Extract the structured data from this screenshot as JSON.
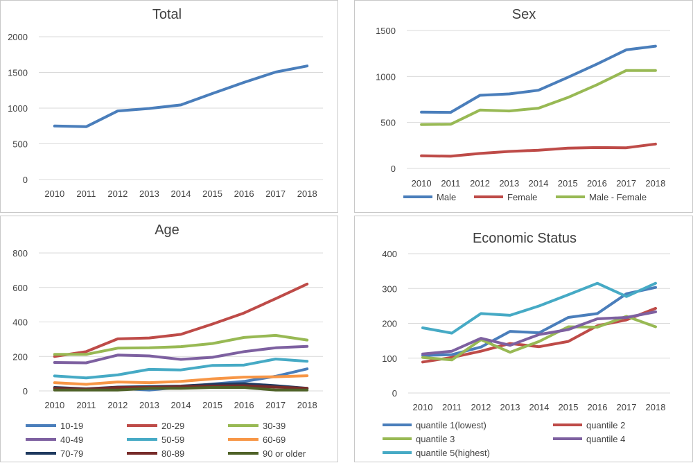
{
  "chart_data": [
    {
      "id": "total",
      "type": "line",
      "title": "Total",
      "categories": [
        "2010",
        "2011",
        "2012",
        "2013",
        "2014",
        "2015",
        "2016",
        "2017",
        "2018"
      ],
      "ylim": [
        0,
        2000
      ],
      "yticks": [
        0,
        500,
        1000,
        1500,
        2000
      ],
      "legend": "none",
      "series": [
        {
          "name": "Total",
          "color": "#4a7ebb",
          "values": [
            750,
            740,
            960,
            995,
            1045,
            1205,
            1360,
            1505,
            1590
          ]
        }
      ]
    },
    {
      "id": "sex",
      "type": "line",
      "title": "Sex",
      "categories": [
        "2010",
        "2011",
        "2012",
        "2013",
        "2014",
        "2015",
        "2016",
        "2017",
        "2018"
      ],
      "ylim": [
        0,
        1500
      ],
      "yticks": [
        0,
        500,
        1000,
        1500
      ],
      "legend": "bottom",
      "series": [
        {
          "name": "Male",
          "color": "#4a7ebb",
          "values": [
            612,
            610,
            795,
            810,
            850,
            990,
            1135,
            1290,
            1330
          ]
        },
        {
          "name": "Female",
          "color": "#be4b48",
          "values": [
            137,
            133,
            163,
            185,
            198,
            220,
            227,
            225,
            265
          ]
        },
        {
          "name": "Male - Female",
          "color": "#98b954",
          "values": [
            477,
            480,
            635,
            625,
            655,
            770,
            910,
            1065,
            1065
          ]
        }
      ]
    },
    {
      "id": "age",
      "type": "line",
      "title": "Age",
      "categories": [
        "2010",
        "2011",
        "2012",
        "2013",
        "2014",
        "2015",
        "2016",
        "2017",
        "2018"
      ],
      "ylim": [
        0,
        800
      ],
      "yticks": [
        0,
        200,
        400,
        600,
        800
      ],
      "legend": "bottom",
      "series": [
        {
          "name": "10-19",
          "color": "#4a7ebb",
          "values": [
            10,
            8,
            15,
            5,
            22,
            40,
            55,
            85,
            128
          ]
        },
        {
          "name": "20-29",
          "color": "#be4b48",
          "values": [
            200,
            228,
            302,
            307,
            328,
            388,
            452,
            535,
            620
          ]
        },
        {
          "name": "30-39",
          "color": "#98b954",
          "values": [
            212,
            212,
            248,
            250,
            257,
            275,
            310,
            322,
            295
          ]
        },
        {
          "name": "40-49",
          "color": "#7d60a0",
          "values": [
            165,
            163,
            208,
            203,
            183,
            195,
            228,
            250,
            258
          ]
        },
        {
          "name": "50-59",
          "color": "#46aac5",
          "values": [
            87,
            75,
            93,
            125,
            122,
            148,
            150,
            185,
            172
          ]
        },
        {
          "name": "60-69",
          "color": "#f79646",
          "values": [
            48,
            38,
            52,
            48,
            55,
            70,
            80,
            82,
            88
          ]
        },
        {
          "name": "70-79",
          "color": "#1f3a5f",
          "values": [
            20,
            12,
            22,
            25,
            28,
            38,
            42,
            30,
            15
          ]
        },
        {
          "name": "80-89",
          "color": "#772c2a",
          "values": [
            15,
            10,
            20,
            20,
            25,
            28,
            30,
            22,
            15
          ]
        },
        {
          "name": "90 or older",
          "color": "#4f6228",
          "values": [
            5,
            5,
            5,
            15,
            15,
            20,
            20,
            5,
            5
          ]
        }
      ]
    },
    {
      "id": "econ",
      "type": "line",
      "title": "Economic Status",
      "categories": [
        "2010",
        "2011",
        "2012",
        "2013",
        "2014",
        "2015",
        "2016",
        "2017",
        "2018"
      ],
      "ylim": [
        0,
        400
      ],
      "yticks": [
        0,
        100,
        200,
        300,
        400
      ],
      "legend": "bottom",
      "series": [
        {
          "name": "quantile 1(lowest)",
          "color": "#4a7ebb",
          "values": [
            108,
            110,
            132,
            177,
            173,
            217,
            228,
            285,
            303
          ]
        },
        {
          "name": "quantile 2",
          "color": "#be4b48",
          "values": [
            89,
            102,
            120,
            142,
            133,
            148,
            193,
            210,
            243
          ]
        },
        {
          "name": "quantile 3",
          "color": "#98b954",
          "values": [
            102,
            95,
            153,
            117,
            148,
            190,
            189,
            220,
            190
          ]
        },
        {
          "name": "quantile 4",
          "color": "#7d60a0",
          "values": [
            112,
            120,
            157,
            137,
            168,
            182,
            213,
            217,
            233
          ]
        },
        {
          "name": "quantile 5(highest)",
          "color": "#46aac5",
          "values": [
            187,
            172,
            228,
            223,
            250,
            282,
            315,
            277,
            315
          ]
        }
      ]
    }
  ]
}
